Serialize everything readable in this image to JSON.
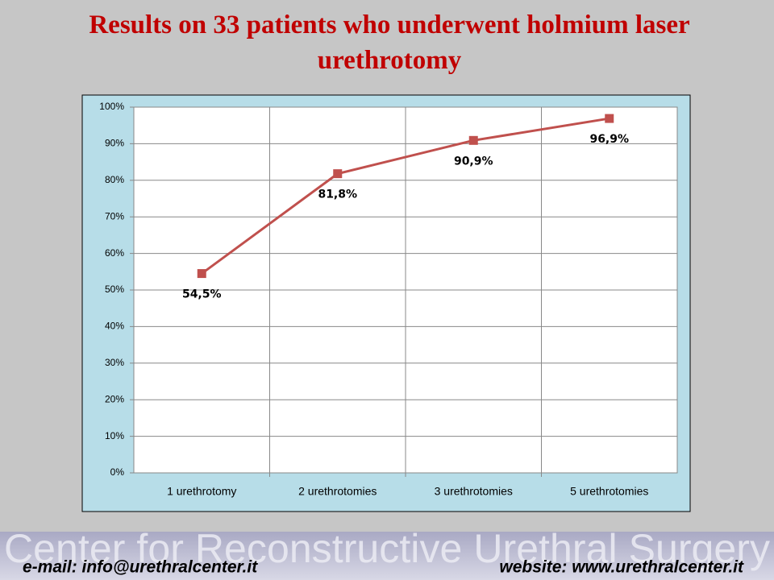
{
  "chart_data": {
    "type": "line",
    "title": "Results on 33 patients who underwent holmium laser urethrotomy",
    "categories": [
      "1 urethrotomy",
      "2 urethrotomies",
      "3 urethrotomies",
      "5 urethrotomies"
    ],
    "values": [
      54.5,
      81.8,
      90.9,
      96.9
    ],
    "value_labels": [
      "54,5%",
      "81,8%",
      "90,9%",
      "96,9%"
    ],
    "color": "#c0504d",
    "ylim": [
      0,
      100
    ],
    "yticks": [
      {
        "value": 0,
        "label": "0%"
      },
      {
        "value": 10,
        "label": "10%"
      },
      {
        "value": 20,
        "label": "20%"
      },
      {
        "value": 30,
        "label": "30%"
      },
      {
        "value": 40,
        "label": "40%"
      },
      {
        "value": 50,
        "label": "50%"
      },
      {
        "value": 60,
        "label": "60%"
      },
      {
        "value": 70,
        "label": "70%"
      },
      {
        "value": 80,
        "label": "80%"
      },
      {
        "value": 90,
        "label": "90%"
      },
      {
        "value": 100,
        "label": "100%"
      }
    ],
    "grid": true
  },
  "footer": {
    "banner": "Center for Reconstructive Urethral Surgery",
    "email": "e-mail: info@urethralcenter.it",
    "website": "website: www.urethralcenter.it"
  }
}
